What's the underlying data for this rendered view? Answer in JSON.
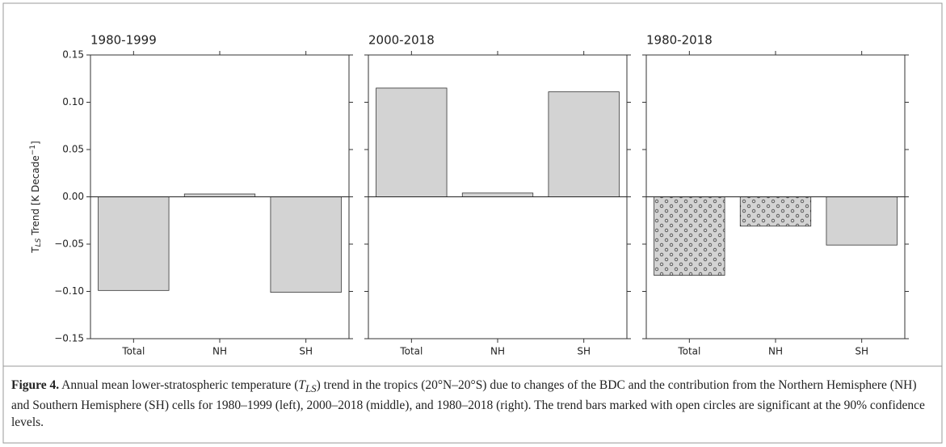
{
  "chart_data": [
    {
      "type": "bar",
      "title": "1980-1999",
      "categories": [
        "Total",
        "NH",
        "SH"
      ],
      "values": [
        -0.099,
        0.003,
        -0.101
      ],
      "significant": [
        false,
        false,
        false
      ],
      "color": "#d3d3d3",
      "ylim": [
        -0.15,
        0.15
      ],
      "yticks": [
        {
          "value": -0.15,
          "label": "−0.15"
        },
        {
          "value": -0.1,
          "label": "−0.10"
        },
        {
          "value": -0.05,
          "label": "−0.05"
        },
        {
          "value": 0,
          "label": "0.00"
        },
        {
          "value": 0.05,
          "label": "0.05"
        },
        {
          "value": 0.1,
          "label": "0.10"
        },
        {
          "value": 0.15,
          "label": "0.15"
        }
      ],
      "ylabel": {
        "symbol": "T",
        "subscript": "LS",
        "text": " Trend [K Decade",
        "superscript": "−1",
        "end": "]"
      }
    },
    {
      "type": "bar",
      "title": "2000-2018",
      "categories": [
        "Total",
        "NH",
        "SH"
      ],
      "values": [
        0.115,
        0.004,
        0.111
      ],
      "significant": [
        false,
        false,
        false
      ],
      "color": "#d3d3d3",
      "ylim": [
        -0.15,
        0.15
      ],
      "yticks": [
        -0.15,
        -0.1,
        -0.05,
        0,
        0.05,
        0.1,
        0.15
      ]
    },
    {
      "type": "bar",
      "title": "1980-2018",
      "categories": [
        "Total",
        "NH",
        "SH"
      ],
      "values": [
        -0.083,
        -0.031,
        -0.051
      ],
      "significant": [
        true,
        true,
        false
      ],
      "color": "#d3d3d3",
      "ylim": [
        -0.15,
        0.15
      ],
      "yticks": [
        -0.15,
        -0.1,
        -0.05,
        0,
        0.05,
        0.1,
        0.15
      ]
    }
  ],
  "caption": {
    "label": "Figure 4.",
    "text1": " Annual mean lower-stratospheric temperature (",
    "symbol": "T",
    "subscript": "LS",
    "text2": ") trend in the tropics (20°N–20°S) due to changes of the BDC and the contribution from the Northern Hemisphere (NH) and Southern Hemisphere (SH) cells for 1980–1999 (left), 2000–2018 (middle), and 1980–2018 (right). The trend bars marked with open circles are significant at the 90% confidence levels."
  }
}
